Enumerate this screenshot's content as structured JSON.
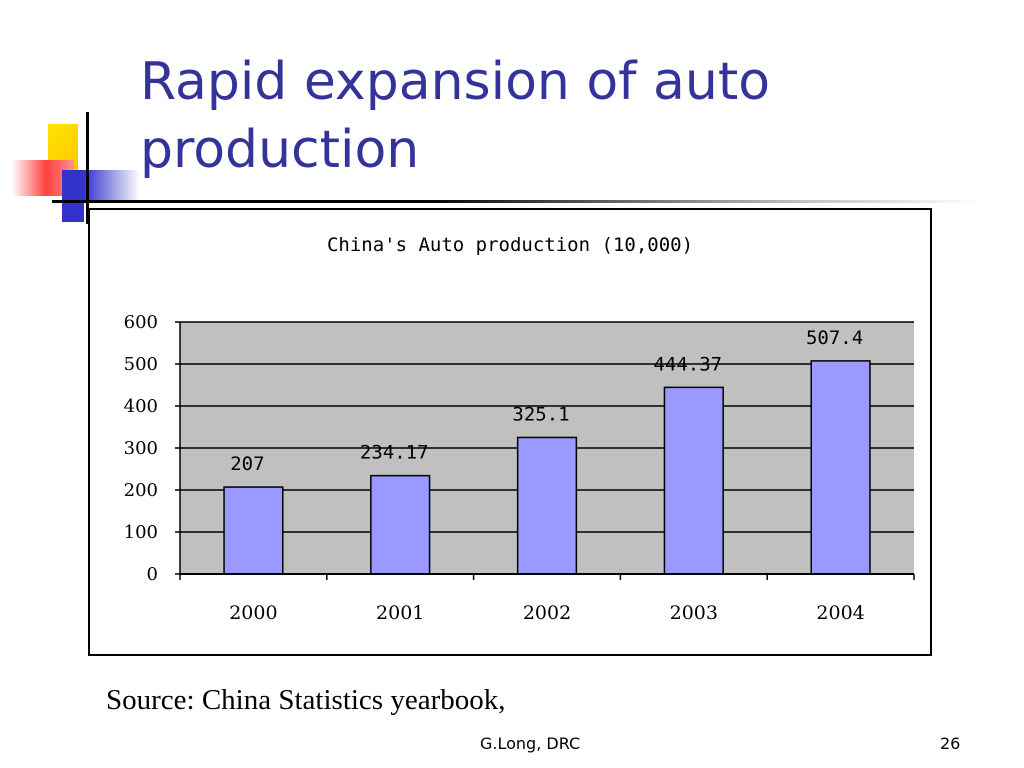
{
  "slide": {
    "title": "Rapid expansion of auto production",
    "source": "Source: China Statistics yearbook,",
    "footer_author": "G.Long, DRC",
    "page_number": "26"
  },
  "colors": {
    "title": "#333399",
    "bar_fill": "#9999FF",
    "plot_background": "#C0C0C0",
    "deco_yellow": "#FFD700",
    "deco_red": "#FF5050",
    "deco_blue": "#3333CC"
  },
  "chart_data": {
    "type": "bar",
    "title": "China's Auto production (10,000)",
    "categories": [
      "2000",
      "2001",
      "2002",
      "2003",
      "2004"
    ],
    "values": [
      207,
      234.17,
      325.1,
      444.37,
      507.4
    ],
    "value_labels": [
      "207",
      "234.17",
      "325.1",
      "444.37",
      "507.4"
    ],
    "yticks": [
      "0",
      "100",
      "200",
      "300",
      "400",
      "500",
      "600"
    ],
    "ylim": [
      0,
      600
    ],
    "xlabel": "",
    "ylabel": "",
    "grid": true,
    "legend": "none"
  }
}
